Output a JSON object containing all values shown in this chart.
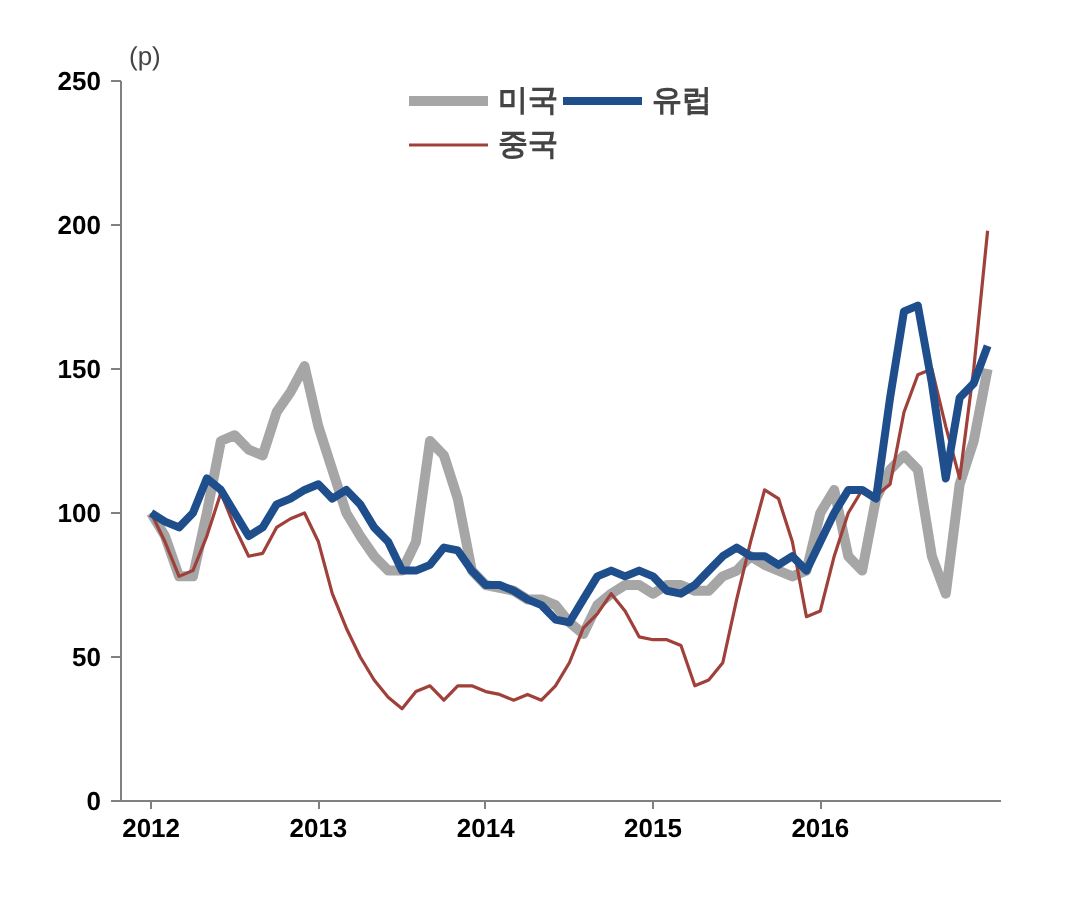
{
  "chart_data": {
    "type": "line",
    "ylabel": "(p)",
    "x": [
      2012,
      2012.083,
      2012.167,
      2012.25,
      2012.333,
      2012.417,
      2012.5,
      2012.583,
      2012.667,
      2012.75,
      2012.833,
      2012.917,
      2013,
      2013.083,
      2013.167,
      2013.25,
      2013.333,
      2013.417,
      2013.5,
      2013.583,
      2013.667,
      2013.75,
      2013.833,
      2013.917,
      2014,
      2014.083,
      2014.167,
      2014.25,
      2014.333,
      2014.417,
      2014.5,
      2014.583,
      2014.667,
      2014.75,
      2014.833,
      2014.917,
      2015,
      2015.083,
      2015.167,
      2015.25,
      2015.333,
      2015.417,
      2015.5,
      2015.583,
      2015.667,
      2015.75,
      2015.833,
      2015.917,
      2016,
      2016.083,
      2016.167,
      2016.25,
      2016.333,
      2016.417,
      2016.5,
      2016.583,
      2016.667,
      2016.75,
      2016.833,
      2016.917,
      2017
    ],
    "series": [
      {
        "name": "미국",
        "color": "#a6a6a6",
        "values": [
          100,
          92,
          78,
          78,
          100,
          125,
          127,
          122,
          120,
          135,
          142,
          151,
          130,
          115,
          100,
          92,
          85,
          80,
          80,
          90,
          125,
          120,
          105,
          80,
          75,
          74,
          73,
          70,
          70,
          68,
          62,
          58,
          68,
          72,
          75,
          75,
          72,
          75,
          75,
          73,
          73,
          78,
          80,
          85,
          82,
          80,
          78,
          80,
          100,
          108,
          85,
          80,
          105,
          115,
          120,
          115,
          85,
          72,
          110,
          125,
          150
        ]
      },
      {
        "name": "중국",
        "color": "#a0403a",
        "values": [
          100,
          90,
          78,
          80,
          92,
          107,
          95,
          85,
          86,
          95,
          98,
          100,
          90,
          72,
          60,
          50,
          42,
          36,
          32,
          38,
          40,
          35,
          40,
          40,
          38,
          37,
          35,
          37,
          35,
          40,
          48,
          60,
          65,
          72,
          66,
          57,
          56,
          56,
          54,
          40,
          42,
          48,
          70,
          90,
          108,
          105,
          90,
          64,
          66,
          85,
          100,
          108,
          106,
          110,
          135,
          148,
          150,
          130,
          112,
          150,
          198
        ]
      },
      {
        "name": "유럽",
        "color": "#1f4e8c",
        "values": [
          100,
          97,
          95,
          100,
          112,
          108,
          100,
          92,
          95,
          103,
          105,
          108,
          110,
          105,
          108,
          103,
          95,
          90,
          80,
          80,
          82,
          88,
          87,
          80,
          75,
          75,
          73,
          70,
          68,
          63,
          62,
          70,
          78,
          80,
          78,
          80,
          78,
          73,
          72,
          75,
          80,
          85,
          88,
          85,
          85,
          82,
          85,
          80,
          90,
          100,
          108,
          108,
          105,
          140,
          170,
          172,
          145,
          112,
          140,
          145,
          158
        ]
      }
    ],
    "xlim": [
      2011.82,
      2017.08
    ],
    "xticks": [
      2012,
      2013,
      2014,
      2015,
      2016
    ],
    "ylim": [
      0,
      250
    ],
    "yticks": [
      0,
      50,
      100,
      150,
      200,
      250
    ],
    "grid": false,
    "legend": "top"
  }
}
